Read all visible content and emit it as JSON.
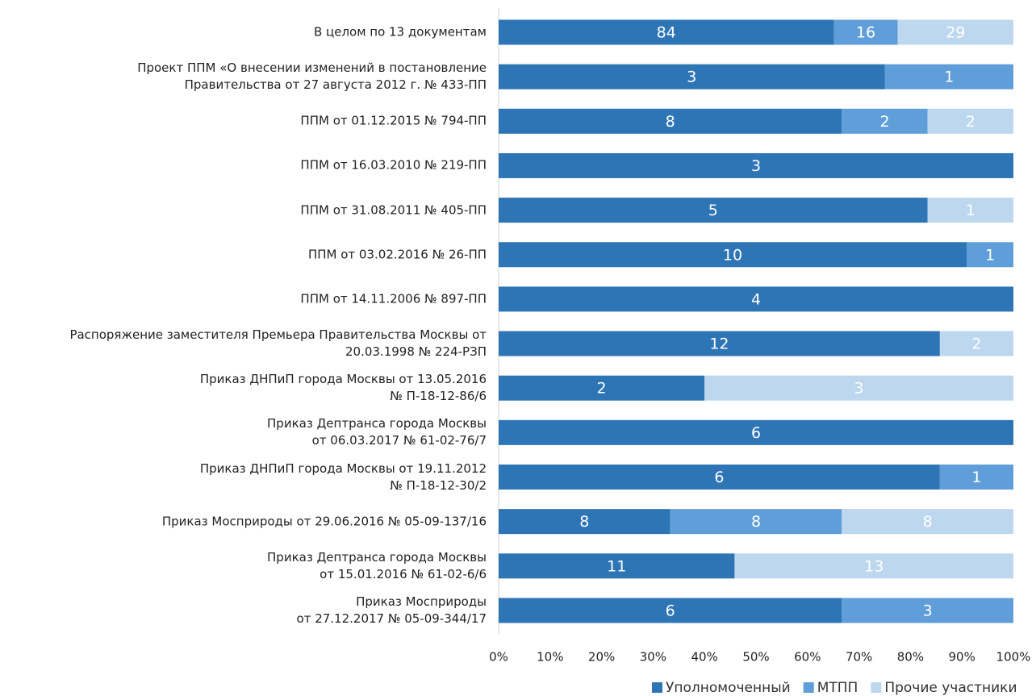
{
  "chart_data": {
    "type": "stacked_percent_bar",
    "categories": [
      "В целом по 13 документам",
      "Проект ППМ «О внесении изменений в постановление\nПравительства от 27 августа 2012 г. № 433-ПП",
      "ППМ от 01.12.2015 № 794-ПП",
      "ППМ от 16.03.2010 № 219-ПП",
      "ППМ от 31.08.2011 № 405-ПП",
      "ППМ от 03.02.2016 № 26-ПП",
      "ППМ от 14.11.2006 № 897-ПП",
      "Распоряжение заместителя Премьера Правительства Москвы от\n20.03.1998 № 224-РЗП",
      "Приказ ДНПиП города Москвы от 13.05.2016\n№ П-18-12-86/6",
      "Приказ Дептранса города Москвы\nот 06.03.2017 № 61-02-76/7",
      "Приказ ДНПиП города Москвы от 19.11.2012\n№ П-18-12-30/2",
      "Приказ Мосприроды от 29.06.2016 № 05-09-137/16",
      "Приказ Дептранса города Москвы\nот 15.01.2016 № 61-02-6/6",
      "Приказ Мосприроды\nот 27.12.2017 № 05-09-344/17"
    ],
    "series": [
      {
        "name": "Уполномоченный",
        "color": "#2e75b6",
        "values": [
          84,
          3,
          8,
          3,
          5,
          10,
          4,
          12,
          2,
          6,
          6,
          8,
          11,
          6
        ]
      },
      {
        "name": "МТПП",
        "color": "#5f9ed8",
        "values": [
          16,
          1,
          2,
          null,
          null,
          1,
          null,
          null,
          null,
          null,
          1,
          8,
          null,
          3
        ]
      },
      {
        "name": "Прочие участники",
        "color": "#bdd7ee",
        "values": [
          29,
          null,
          2,
          null,
          1,
          null,
          null,
          2,
          3,
          null,
          null,
          8,
          13,
          null
        ]
      }
    ],
    "xlim": [
      0,
      100
    ],
    "xticks": [
      {
        "value": 0,
        "label": "0%"
      },
      {
        "value": 10,
        "label": "10%"
      },
      {
        "value": 20,
        "label": "20%"
      },
      {
        "value": 30,
        "label": "30%"
      },
      {
        "value": 40,
        "label": "40%"
      },
      {
        "value": 50,
        "label": "50%"
      },
      {
        "value": 60,
        "label": "60%"
      },
      {
        "value": 70,
        "label": "70%"
      },
      {
        "value": 80,
        "label": "80%"
      },
      {
        "value": 90,
        "label": "90%"
      },
      {
        "value": 100,
        "label": "100%"
      }
    ],
    "legend": "bottom"
  }
}
